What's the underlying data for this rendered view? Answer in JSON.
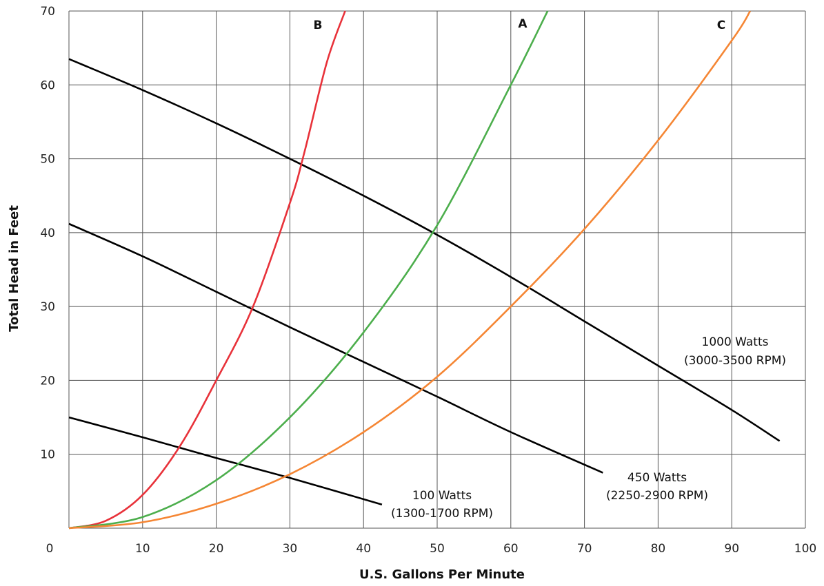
{
  "chart_data": {
    "type": "line",
    "title": "",
    "xlabel": "U.S. Gallons Per Minute",
    "ylabel": "Total Head in Feet",
    "xlim": [
      0,
      100
    ],
    "ylim": [
      0,
      70
    ],
    "x_ticks": [
      0,
      10,
      20,
      30,
      40,
      50,
      60,
      70,
      80,
      90,
      100
    ],
    "y_ticks": [
      10,
      20,
      30,
      40,
      50,
      60,
      70
    ],
    "grid": true,
    "legend": "none",
    "colors": {
      "B": "#e8323a",
      "A": "#4cae4c",
      "C": "#f58634",
      "pump": "#000000",
      "grid": "#555555"
    },
    "system_curves": [
      {
        "name": "B",
        "points": [
          [
            0,
            0
          ],
          [
            5,
            1
          ],
          [
            10,
            4.5
          ],
          [
            15,
            11
          ],
          [
            20,
            20
          ],
          [
            25,
            30
          ],
          [
            30,
            44
          ],
          [
            32,
            51
          ],
          [
            35,
            63
          ],
          [
            37.5,
            70
          ]
        ]
      },
      {
        "name": "A",
        "points": [
          [
            0,
            0
          ],
          [
            10,
            1.5
          ],
          [
            20,
            6.5
          ],
          [
            30,
            15
          ],
          [
            40,
            26.5
          ],
          [
            50,
            41
          ],
          [
            60,
            60
          ],
          [
            65,
            70
          ]
        ]
      },
      {
        "name": "C",
        "points": [
          [
            0,
            0
          ],
          [
            10,
            0.8
          ],
          [
            20,
            3.3
          ],
          [
            30,
            7.3
          ],
          [
            40,
            13
          ],
          [
            50,
            20.5
          ],
          [
            60,
            30
          ],
          [
            70,
            40.5
          ],
          [
            80,
            52.5
          ],
          [
            90,
            66
          ],
          [
            92.5,
            70
          ]
        ]
      }
    ],
    "pump_curves": [
      {
        "points": [
          [
            0,
            63.5
          ],
          [
            10,
            59.3
          ],
          [
            20,
            54.8
          ],
          [
            30,
            50
          ],
          [
            40,
            45
          ],
          [
            50,
            39.7
          ],
          [
            60,
            34
          ],
          [
            70,
            28
          ],
          [
            80,
            22
          ],
          [
            90,
            16
          ],
          [
            96.5,
            11.8
          ]
        ]
      },
      {
        "points": [
          [
            0,
            41.2
          ],
          [
            10,
            36.8
          ],
          [
            20,
            32
          ],
          [
            30,
            27.2
          ],
          [
            40,
            22.5
          ],
          [
            50,
            17.8
          ],
          [
            60,
            13
          ],
          [
            72.5,
            7.5
          ]
        ]
      },
      {
        "points": [
          [
            0,
            15
          ],
          [
            10,
            12.3
          ],
          [
            20,
            9.5
          ],
          [
            30,
            6.8
          ],
          [
            42.5,
            3.2
          ]
        ]
      }
    ],
    "annotations": [
      {
        "line1": "1000 Watts",
        "line2": "(3000-3500 RPM)"
      },
      {
        "line1": "450 Watts",
        "line2": "(2250-2900 RPM)"
      },
      {
        "line1": "100 Watts",
        "line2": "(1300-1700 RPM)"
      }
    ]
  }
}
